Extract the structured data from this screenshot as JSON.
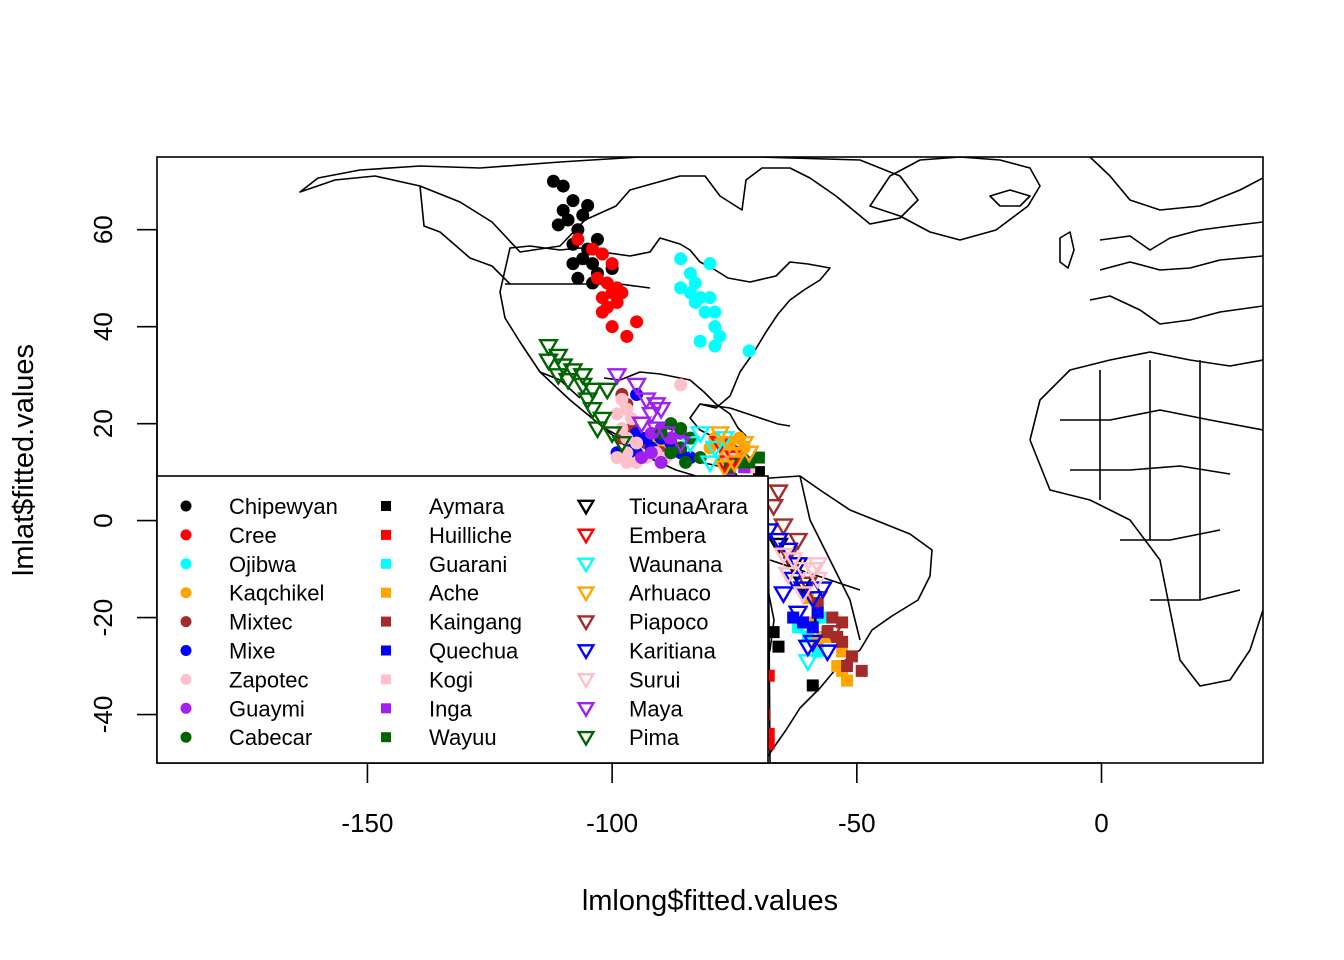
{
  "chart_data": {
    "type": "scatter",
    "xlabel": "lmlong$fitted.values",
    "ylabel": "lmlat$fitted.values",
    "xlim": [
      -193,
      33
    ],
    "ylim": [
      -50,
      75
    ],
    "x_ticks": [
      "-150",
      "-100",
      "-50",
      "0"
    ],
    "y_ticks": [
      "-40",
      "-20",
      "0",
      "20",
      "40",
      "60"
    ],
    "background_map": "world country outlines",
    "grid": false,
    "legend_position": "bottom-left",
    "legend": [
      {
        "name": "Chipewyan",
        "color": "#000000",
        "marker": "circle"
      },
      {
        "name": "Cree",
        "color": "#FF0000",
        "marker": "circle"
      },
      {
        "name": "Ojibwa",
        "color": "#00FFFF",
        "marker": "circle"
      },
      {
        "name": "Kaqchikel",
        "color": "#FFA500",
        "marker": "circle"
      },
      {
        "name": "Mixtec",
        "color": "#A52A2A",
        "marker": "circle"
      },
      {
        "name": "Mixe",
        "color": "#0000FF",
        "marker": "circle"
      },
      {
        "name": "Zapotec",
        "color": "#FFC0CB",
        "marker": "circle"
      },
      {
        "name": "Guaymi",
        "color": "#A020F0",
        "marker": "circle"
      },
      {
        "name": "Cabecar",
        "color": "#006400",
        "marker": "circle"
      },
      {
        "name": "Aymara",
        "color": "#000000",
        "marker": "square"
      },
      {
        "name": "Huilliche",
        "color": "#FF0000",
        "marker": "square"
      },
      {
        "name": "Guarani",
        "color": "#00FFFF",
        "marker": "square"
      },
      {
        "name": "Ache",
        "color": "#FFA500",
        "marker": "square"
      },
      {
        "name": "Kaingang",
        "color": "#A52A2A",
        "marker": "square"
      },
      {
        "name": "Quechua",
        "color": "#0000FF",
        "marker": "square"
      },
      {
        "name": "Kogi",
        "color": "#FFC0CB",
        "marker": "square"
      },
      {
        "name": "Inga",
        "color": "#A020F0",
        "marker": "square"
      },
      {
        "name": "Wayuu",
        "color": "#006400",
        "marker": "square"
      },
      {
        "name": "TicunaArara",
        "color": "#000000",
        "marker": "triangle-down"
      },
      {
        "name": "Embera",
        "color": "#FF0000",
        "marker": "triangle-down"
      },
      {
        "name": "Waunana",
        "color": "#00FFFF",
        "marker": "triangle-down"
      },
      {
        "name": "Arhuaco",
        "color": "#FFA500",
        "marker": "triangle-down"
      },
      {
        "name": "Piapoco",
        "color": "#A52A2A",
        "marker": "triangle-down"
      },
      {
        "name": "Karitiana",
        "color": "#0000FF",
        "marker": "triangle-down"
      },
      {
        "name": "Surui",
        "color": "#FFC0CB",
        "marker": "triangle-down"
      },
      {
        "name": "Maya",
        "color": "#A020F0",
        "marker": "triangle-down"
      },
      {
        "name": "Pima",
        "color": "#006400",
        "marker": "triangle-down"
      }
    ],
    "series": [
      {
        "name": "Chipewyan",
        "points": [
          [
            -112,
            70
          ],
          [
            -110,
            69
          ],
          [
            -108,
            66
          ],
          [
            -105,
            65
          ],
          [
            -110,
            64
          ],
          [
            -106,
            63
          ],
          [
            -109,
            62
          ],
          [
            -111,
            61
          ],
          [
            -107,
            60
          ],
          [
            -103,
            58
          ],
          [
            -108,
            57
          ],
          [
            -105,
            56
          ],
          [
            -102,
            55
          ],
          [
            -106,
            54
          ],
          [
            -108,
            53
          ],
          [
            -104,
            53
          ],
          [
            -100,
            52
          ],
          [
            -103,
            51
          ],
          [
            -107,
            50
          ],
          [
            -104,
            49
          ]
        ]
      },
      {
        "name": "Cree",
        "points": [
          [
            -107,
            58
          ],
          [
            -104,
            56
          ],
          [
            -102,
            55
          ],
          [
            -100,
            53
          ],
          [
            -103,
            50
          ],
          [
            -101,
            49
          ],
          [
            -99,
            48
          ],
          [
            -100,
            47
          ],
          [
            -102,
            46
          ],
          [
            -99,
            45
          ],
          [
            -101,
            44
          ],
          [
            -102,
            43
          ],
          [
            -100,
            40
          ],
          [
            -97,
            38
          ],
          [
            -95,
            41
          ],
          [
            -98,
            47
          ]
        ]
      },
      {
        "name": "Ojibwa",
        "points": [
          [
            -86,
            54
          ],
          [
            -80,
            53
          ],
          [
            -84,
            51
          ],
          [
            -83,
            49
          ],
          [
            -86,
            48
          ],
          [
            -84,
            47
          ],
          [
            -82,
            46
          ],
          [
            -80,
            46
          ],
          [
            -83,
            45
          ],
          [
            -81,
            43
          ],
          [
            -79,
            43
          ],
          [
            -79,
            40
          ],
          [
            -82,
            37
          ],
          [
            -79,
            36
          ],
          [
            -78,
            38
          ],
          [
            -72,
            35
          ]
        ]
      },
      {
        "name": "Kaqchikel",
        "points": [
          [
            -90,
            14
          ],
          [
            -89,
            15
          ],
          [
            -91,
            16
          ],
          [
            -88,
            15
          ],
          [
            -79,
            17
          ],
          [
            -78,
            16
          ],
          [
            -77,
            15
          ],
          [
            -76,
            16
          ],
          [
            -74,
            17
          ],
          [
            -75,
            14
          ],
          [
            -73,
            15
          ],
          [
            -77,
            13
          ],
          [
            -80,
            15
          ]
        ]
      },
      {
        "name": "Mixtec",
        "points": [
          [
            -98,
            26
          ],
          [
            -97,
            24
          ],
          [
            -96,
            19
          ],
          [
            -97,
            18
          ],
          [
            -95,
            17
          ],
          [
            -98,
            17
          ],
          [
            -96,
            15
          ],
          [
            -93,
            16
          ],
          [
            -90,
            14
          ],
          [
            -86,
            15
          ]
        ]
      },
      {
        "name": "Mixe",
        "points": [
          [
            -95,
            18
          ],
          [
            -94,
            17
          ],
          [
            -96,
            16
          ],
          [
            -93,
            17
          ],
          [
            -99,
            14
          ],
          [
            -95,
            14
          ],
          [
            -92,
            15
          ],
          [
            -90,
            17
          ],
          [
            -88,
            16
          ],
          [
            -86,
            14
          ],
          [
            -84,
            13
          ],
          [
            -95,
            26
          ]
        ]
      },
      {
        "name": "Zapotec",
        "points": [
          [
            -98,
            25
          ],
          [
            -97,
            23
          ],
          [
            -99,
            22
          ],
          [
            -96,
            21
          ],
          [
            -98,
            19
          ],
          [
            -97,
            17
          ],
          [
            -95,
            16
          ],
          [
            -97,
            14
          ],
          [
            -99,
            13
          ],
          [
            -97,
            12
          ],
          [
            -95,
            12
          ],
          [
            -93,
            13
          ],
          [
            -91,
            14
          ],
          [
            -89,
            13
          ],
          [
            -86,
            28
          ]
        ]
      },
      {
        "name": "Guaymi",
        "points": [
          [
            -92,
            18
          ],
          [
            -90,
            19
          ],
          [
            -88,
            17
          ],
          [
            -86,
            18
          ],
          [
            -92,
            14
          ],
          [
            -94,
            13
          ],
          [
            -90,
            12
          ]
        ]
      },
      {
        "name": "Cabecar",
        "points": [
          [
            -88,
            20
          ],
          [
            -86,
            19
          ],
          [
            -90,
            18
          ],
          [
            -84,
            17
          ],
          [
            -86,
            15
          ],
          [
            -88,
            14
          ],
          [
            -85,
            12
          ],
          [
            -82,
            13
          ]
        ]
      },
      {
        "name": "Aymara",
        "points": [
          [
            -67,
            -23
          ],
          [
            -66,
            -26
          ],
          [
            -59,
            -34
          ],
          [
            -58,
            -20
          ],
          [
            -70,
            10
          ],
          [
            -72,
            11
          ]
        ]
      },
      {
        "name": "Huilliche",
        "points": [
          [
            -68,
            -32
          ],
          [
            -69,
            -40
          ],
          [
            -68,
            -44
          ],
          [
            -68,
            -46
          ]
        ]
      },
      {
        "name": "Guarani",
        "points": [
          [
            -58,
            -27
          ],
          [
            -60,
            -24
          ],
          [
            -62,
            -22
          ],
          [
            -57,
            -20
          ]
        ]
      },
      {
        "name": "Ache",
        "points": [
          [
            -60,
            -16
          ],
          [
            -58,
            -18
          ],
          [
            -60,
            -21
          ],
          [
            -57,
            -24
          ],
          [
            -55,
            -24
          ],
          [
            -53,
            -27
          ],
          [
            -54,
            -30
          ],
          [
            -53,
            -31
          ],
          [
            -52,
            -33
          ],
          [
            -58,
            -25
          ]
        ]
      },
      {
        "name": "Kaingang",
        "points": [
          [
            -58,
            -17
          ],
          [
            -55,
            -20
          ],
          [
            -53,
            -21
          ],
          [
            -56,
            -23
          ],
          [
            -54,
            -24
          ],
          [
            -51,
            -28
          ],
          [
            -52,
            -30
          ],
          [
            -49,
            -31
          ],
          [
            -53,
            -25
          ]
        ]
      },
      {
        "name": "Quechua",
        "points": [
          [
            -63,
            -20
          ],
          [
            -61,
            -21
          ],
          [
            -59,
            -22
          ],
          [
            -58,
            -19
          ]
        ]
      },
      {
        "name": "Kogi",
        "points": [
          [
            -74,
            12
          ],
          [
            -72,
            11
          ],
          [
            -76,
            13
          ]
        ]
      },
      {
        "name": "Inga",
        "points": [
          [
            -76,
            10
          ],
          [
            -73,
            11
          ]
        ]
      },
      {
        "name": "Wayuu",
        "points": [
          [
            -70,
            13
          ],
          [
            -72,
            12
          ],
          [
            -74,
            12
          ],
          [
            -76,
            11
          ]
        ]
      },
      {
        "name": "TicunaArara",
        "points": [
          [
            -64,
            -11
          ],
          [
            -61,
            -13
          ],
          [
            -63,
            -9
          ],
          [
            -66,
            -5
          ]
        ]
      },
      {
        "name": "Embera",
        "points": [
          [
            -78,
            16
          ],
          [
            -75,
            13
          ],
          [
            -77,
            12
          ]
        ]
      },
      {
        "name": "Waunana",
        "points": [
          [
            -84,
            16
          ],
          [
            -82,
            18
          ],
          [
            -79,
            15
          ],
          [
            -77,
            17
          ],
          [
            -80,
            12
          ],
          [
            -60,
            -29
          ]
        ]
      },
      {
        "name": "Arhuaco",
        "points": [
          [
            -78,
            18
          ],
          [
            -76,
            16
          ],
          [
            -74,
            15
          ],
          [
            -72,
            14
          ],
          [
            -75,
            12
          ],
          [
            -77,
            11
          ],
          [
            -73,
            16
          ]
        ]
      },
      {
        "name": "Piapoco",
        "points": [
          [
            -66,
            6
          ],
          [
            -67,
            3
          ],
          [
            -65,
            -1
          ],
          [
            -62,
            -4
          ],
          [
            -64,
            -7
          ],
          [
            -60,
            -13
          ],
          [
            -58,
            -16
          ],
          [
            -55,
            -23
          ]
        ]
      },
      {
        "name": "Karitiana",
        "points": [
          [
            -68,
            -2
          ],
          [
            -66,
            -4
          ],
          [
            -64,
            -6
          ],
          [
            -62,
            -9
          ],
          [
            -63,
            -12
          ],
          [
            -61,
            -14
          ],
          [
            -65,
            -15
          ],
          [
            -59,
            -16
          ],
          [
            -57,
            -14
          ],
          [
            -62,
            -19
          ],
          [
            -59,
            -25
          ],
          [
            -56,
            -27
          ],
          [
            -60,
            -26
          ]
        ]
      },
      {
        "name": "Surui",
        "points": [
          [
            -65,
            -7
          ],
          [
            -63,
            -8
          ],
          [
            -61,
            -10
          ],
          [
            -59,
            -10
          ],
          [
            -64,
            -11
          ],
          [
            -58,
            -12
          ],
          [
            -61,
            -15
          ],
          [
            -58,
            -9
          ]
        ]
      },
      {
        "name": "Maya",
        "points": [
          [
            -99,
            30
          ],
          [
            -95,
            28
          ],
          [
            -93,
            25
          ],
          [
            -91,
            24
          ],
          [
            -92,
            22
          ],
          [
            -90,
            23
          ],
          [
            -94,
            20
          ],
          [
            -91,
            19
          ],
          [
            -89,
            18
          ],
          [
            -86,
            16
          ]
        ]
      },
      {
        "name": "Pima",
        "points": [
          [
            -113,
            36
          ],
          [
            -111,
            34
          ],
          [
            -113,
            33
          ],
          [
            -110,
            32
          ],
          [
            -108,
            31
          ],
          [
            -111,
            30
          ],
          [
            -109,
            29
          ],
          [
            -106,
            28
          ],
          [
            -104,
            27
          ],
          [
            -105,
            25
          ],
          [
            -104,
            23
          ],
          [
            -102,
            21
          ],
          [
            -103,
            19
          ],
          [
            -100,
            18
          ],
          [
            -98,
            16
          ],
          [
            -101,
            27
          ],
          [
            -106,
            30
          ]
        ]
      }
    ]
  }
}
